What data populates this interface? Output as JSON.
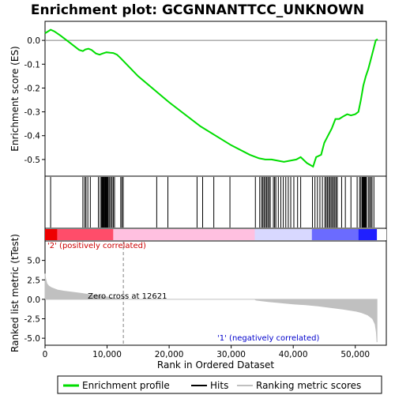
{
  "title": "Enrichment plot: GCGNNANTTCC_UNKNOWN",
  "colors": {
    "enrichment_line": "#00dd00",
    "hits": "#000000",
    "metric_fill": "#c0c0c0",
    "zero_line": "#808080",
    "positive_label": "#cc0000",
    "negative_label": "#0000cc",
    "bar_red": "#ee0000",
    "bar_pink": "#ffc0e0",
    "bar_lavender": "#d8d8ff",
    "bar_blue": "#2020ff"
  },
  "chart_data": [
    {
      "panel": "enrichment",
      "type": "line",
      "ylabel": "Enrichment score (ES)",
      "xlim": [
        0,
        55000
      ],
      "ylim": [
        -0.57,
        0.08
      ],
      "yticks": [
        0.0,
        -0.1,
        -0.2,
        -0.3,
        -0.4,
        -0.5
      ],
      "ytick_labels": [
        "0.0",
        "-0.1",
        "-0.2",
        "-0.3",
        "-0.4",
        "-0.5"
      ],
      "grid": false,
      "series": [
        {
          "x": [
            0,
            300,
            900,
            1500,
            2500,
            4000,
            5500,
            6100,
            6500,
            7000,
            7500,
            8200,
            8800,
            9300,
            9900,
            10500,
            11000,
            11600,
            12200,
            15000,
            20000,
            25000,
            30000,
            33000,
            34500,
            35500,
            36500,
            37500,
            38500,
            39500,
            40500,
            41200,
            42200,
            43200,
            43700,
            44500,
            45000,
            45600,
            46200,
            46800,
            47400,
            48000,
            48700,
            49300,
            50000,
            50500,
            50900,
            51300,
            51700,
            52100,
            52500,
            52900,
            53300,
            53600
          ],
          "y": [
            0.03,
            0.035,
            0.045,
            0.038,
            0.02,
            -0.01,
            -0.04,
            -0.045,
            -0.038,
            -0.035,
            -0.04,
            -0.055,
            -0.06,
            -0.055,
            -0.05,
            -0.052,
            -0.053,
            -0.06,
            -0.075,
            -0.15,
            -0.26,
            -0.36,
            -0.44,
            -0.48,
            -0.495,
            -0.5,
            -0.5,
            -0.505,
            -0.51,
            -0.505,
            -0.5,
            -0.49,
            -0.515,
            -0.53,
            -0.49,
            -0.48,
            -0.43,
            -0.4,
            -0.37,
            -0.33,
            -0.33,
            -0.32,
            -0.31,
            -0.315,
            -0.31,
            -0.3,
            -0.25,
            -0.19,
            -0.15,
            -0.12,
            -0.08,
            -0.04,
            0.0,
            0.005
          ]
        }
      ]
    },
    {
      "panel": "hits",
      "type": "scatter",
      "hit_positions": [
        900,
        6100,
        6400,
        6600,
        6900,
        7300,
        8600,
        8900,
        9100,
        9200,
        9300,
        9400,
        9500,
        9600,
        9700,
        9800,
        9900,
        10000,
        10100,
        10200,
        10400,
        10600,
        10800,
        11000,
        11200,
        12200,
        12400,
        12600,
        18000,
        19800,
        24500,
        25400,
        27200,
        29800,
        33900,
        34600,
        34900,
        35100,
        35300,
        35500,
        35700,
        35900,
        36100,
        36300,
        36800,
        37000,
        37200,
        37600,
        38000,
        38400,
        38800,
        39200,
        39600,
        40100,
        40700,
        41200,
        43100,
        43500,
        43900,
        44300,
        44700,
        45100,
        45300,
        45500,
        45700,
        45900,
        46100,
        46300,
        46500,
        46700,
        46900,
        47100,
        47800,
        48400,
        49300,
        50300,
        50700,
        50900,
        51100,
        51200,
        51300,
        51400,
        51500,
        51600,
        51700,
        51800,
        52100,
        52300,
        52500,
        52700,
        53000
      ]
    },
    {
      "panel": "ranking",
      "type": "area",
      "xlabel": "Rank in Ordered Dataset",
      "ylabel": "Ranked list metric (tTest)",
      "xlim": [
        0,
        55000
      ],
      "ylim": [
        -5.9,
        7.5
      ],
      "xticks": [
        0,
        10000,
        20000,
        30000,
        40000,
        50000
      ],
      "xtick_labels": [
        "0",
        "10,000",
        "20,000",
        "30,000",
        "40,000",
        "50,000"
      ],
      "yticks": [
        5.0,
        2.5,
        0.0,
        -2.5,
        -5.0
      ],
      "ytick_labels": [
        "5.0",
        "2.5",
        "0.0",
        "-2.5",
        "-5.0"
      ],
      "x": [
        0,
        100,
        300,
        600,
        1000,
        1500,
        2000,
        3000,
        4000,
        6000,
        8000,
        10000,
        12000,
        12621,
        13000,
        20000,
        30000,
        33800,
        34000,
        36000,
        38000,
        40000,
        42000,
        44000,
        46000,
        48000,
        50000,
        51000,
        52000,
        52800,
        53200,
        53400,
        53500
      ],
      "values": [
        3.3,
        2.6,
        2.0,
        1.7,
        1.5,
        1.35,
        1.2,
        1.05,
        0.95,
        0.75,
        0.5,
        0.3,
        0.05,
        0.0,
        0.0,
        0.0,
        0.0,
        0.0,
        -0.1,
        -0.3,
        -0.45,
        -0.6,
        -0.7,
        -0.85,
        -1.05,
        -1.25,
        -1.5,
        -1.7,
        -2.0,
        -2.5,
        -3.2,
        -4.2,
        -5.5
      ],
      "zero_cross_rank": 12621,
      "annotations": {
        "zero_cross": "Zero cross at 12621",
        "positive": "'2' (positively correlated)",
        "negative": "'1' (negatively correlated)"
      }
    }
  ],
  "legend": {
    "items": [
      {
        "label": "Enrichment profile",
        "style": "line",
        "color": "#00dd00"
      },
      {
        "label": "Hits",
        "style": "line",
        "color": "#000000"
      },
      {
        "label": "Ranking metric scores",
        "style": "line",
        "color": "#c0c0c0"
      }
    ]
  }
}
